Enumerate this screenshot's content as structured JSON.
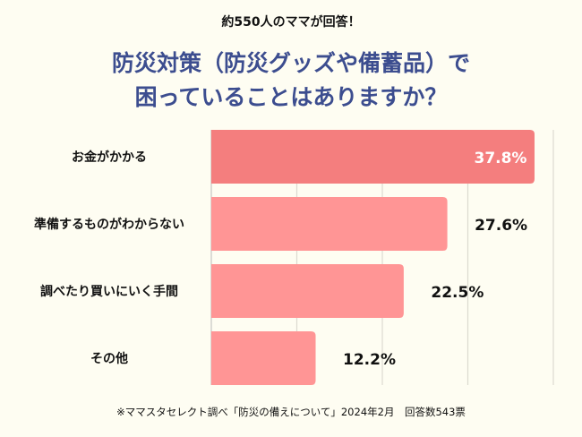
{
  "header": {
    "subtitle": "約550人のママが回答！",
    "title_line1": "防災対策（防災グッズや備蓄品）で",
    "title_line2": "困っていることはありますか？"
  },
  "chart_data": {
    "type": "bar",
    "orientation": "horizontal",
    "title": "防災対策（防災グッズや備蓄品）で困っていることはありますか？",
    "categories": [
      "お金がかかる",
      "準備するものがわからない",
      "調べたり買いにいく手間",
      "その他"
    ],
    "values": [
      37.8,
      27.6,
      22.5,
      12.2
    ],
    "labels": [
      "37.8%",
      "27.6%",
      "22.5%",
      "12.2%"
    ],
    "xlim": [
      0,
      40
    ],
    "grid": true,
    "colors": {
      "highlight": "#f47e7e",
      "bar": "#ff9595",
      "grid": "#dcdad0",
      "label_on_bar": "#ffffff",
      "label": "#111111"
    }
  },
  "footer": {
    "source": "※ママスタセレクト調べ「防災の備えについて」2024年2月　回答数543票"
  }
}
